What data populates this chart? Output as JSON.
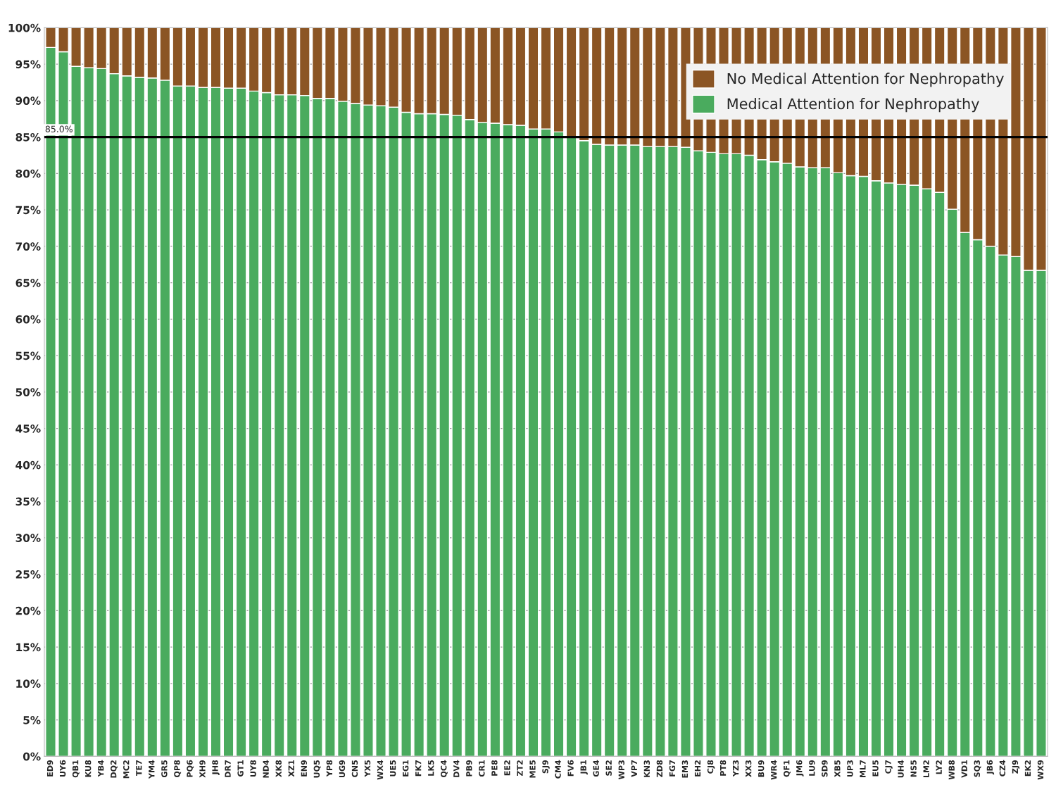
{
  "chart_data": {
    "type": "bar",
    "stacked": true,
    "categories": [
      "ED9",
      "UY6",
      "QB1",
      "KU8",
      "YB4",
      "DQ2",
      "MC2",
      "TE7",
      "YM4",
      "GR5",
      "QP8",
      "PQ6",
      "XH9",
      "JH8",
      "DR7",
      "GT1",
      "UY8",
      "ND4",
      "XK8",
      "XZ1",
      "EN9",
      "UQ5",
      "YP8",
      "UG9",
      "CN5",
      "YX5",
      "WX4",
      "UE5",
      "EG1",
      "FK7",
      "LK5",
      "QC4",
      "DV4",
      "PB9",
      "CR1",
      "PE8",
      "EE2",
      "ZT2",
      "ME5",
      "SJ9",
      "CM4",
      "FV6",
      "JB1",
      "GE4",
      "SE2",
      "WP3",
      "VP7",
      "KN3",
      "ZD8",
      "FG7",
      "EM3",
      "EH2",
      "CJ8",
      "PT8",
      "YZ3",
      "XX3",
      "BU9",
      "WR4",
      "QF1",
      "JM6",
      "LU9",
      "SD9",
      "XB5",
      "UP3",
      "ML7",
      "EU5",
      "CJ7",
      "UH4",
      "NS5",
      "LM2",
      "LY2",
      "WB8",
      "VD1",
      "SQ3",
      "JB6",
      "CZ4",
      "ZJ9",
      "EK2",
      "WX9"
    ],
    "series": [
      {
        "name": "Medical Attention for Nephropathy",
        "color": "#4aab5e",
        "values": [
          97.3,
          96.7,
          94.7,
          94.5,
          94.4,
          93.7,
          93.4,
          93.2,
          93.1,
          92.8,
          92.0,
          92.0,
          91.8,
          91.8,
          91.7,
          91.7,
          91.3,
          91.1,
          90.8,
          90.8,
          90.7,
          90.3,
          90.3,
          89.9,
          89.6,
          89.4,
          89.3,
          89.1,
          88.4,
          88.2,
          88.2,
          88.1,
          88.0,
          87.4,
          87.0,
          86.9,
          86.7,
          86.6,
          86.1,
          86.1,
          85.7,
          85.0,
          84.5,
          84.0,
          83.9,
          83.9,
          83.9,
          83.7,
          83.7,
          83.7,
          83.6,
          83.1,
          82.9,
          82.7,
          82.7,
          82.5,
          81.9,
          81.6,
          81.4,
          80.9,
          80.8,
          80.8,
          80.1,
          79.7,
          79.6,
          79.0,
          78.7,
          78.5,
          78.4,
          77.9,
          77.4,
          75.1,
          71.9,
          70.9,
          70.0,
          68.8,
          68.6,
          66.7,
          66.7
        ]
      },
      {
        "name": "No Medical Attention for Nephropathy",
        "color": "#8b5524",
        "values": [
          2.7,
          3.3,
          5.3,
          5.5,
          5.6,
          6.3,
          6.6,
          6.8,
          6.9,
          7.2,
          8.0,
          8.0,
          8.2,
          8.2,
          8.3,
          8.3,
          8.7,
          8.9,
          9.2,
          9.2,
          9.3,
          9.7,
          9.7,
          10.1,
          10.4,
          10.6,
          10.7,
          10.9,
          11.6,
          11.8,
          11.8,
          11.9,
          12.0,
          12.6,
          13.0,
          13.1,
          13.3,
          13.4,
          13.9,
          13.9,
          14.3,
          15.0,
          15.5,
          16.0,
          16.1,
          16.1,
          16.1,
          16.3,
          16.3,
          16.3,
          16.4,
          16.9,
          17.1,
          17.3,
          17.3,
          17.5,
          18.1,
          18.4,
          18.6,
          19.1,
          19.2,
          19.2,
          19.9,
          20.3,
          20.4,
          21.0,
          21.3,
          21.5,
          21.6,
          22.1,
          22.6,
          24.9,
          28.1,
          29.1,
          30.0,
          31.2,
          31.4,
          33.3,
          33.3
        ]
      }
    ],
    "ylim": [
      0,
      100
    ],
    "yticks": [
      {
        "value": 0,
        "label": "0%"
      },
      {
        "value": 5,
        "label": "5%"
      },
      {
        "value": 10,
        "label": "10%"
      },
      {
        "value": 15,
        "label": "15%"
      },
      {
        "value": 20,
        "label": "20%"
      },
      {
        "value": 25,
        "label": "25%"
      },
      {
        "value": 30,
        "label": "30%"
      },
      {
        "value": 35,
        "label": "35%"
      },
      {
        "value": 40,
        "label": "40%"
      },
      {
        "value": 45,
        "label": "45%"
      },
      {
        "value": 50,
        "label": "50%"
      },
      {
        "value": 55,
        "label": "55%"
      },
      {
        "value": 60,
        "label": "60%"
      },
      {
        "value": 65,
        "label": "65%"
      },
      {
        "value": 70,
        "label": "70%"
      },
      {
        "value": 75,
        "label": "75%"
      },
      {
        "value": 80,
        "label": "80%"
      },
      {
        "value": 85,
        "label": "85%"
      },
      {
        "value": 90,
        "label": "90%"
      },
      {
        "value": 95,
        "label": "95%"
      },
      {
        "value": 100,
        "label": "100%"
      }
    ],
    "ref_lines": [
      {
        "axis": "y",
        "value": 85,
        "label": "85.0%",
        "color": "#000000"
      }
    ],
    "grid": "y",
    "legend": "top right"
  }
}
